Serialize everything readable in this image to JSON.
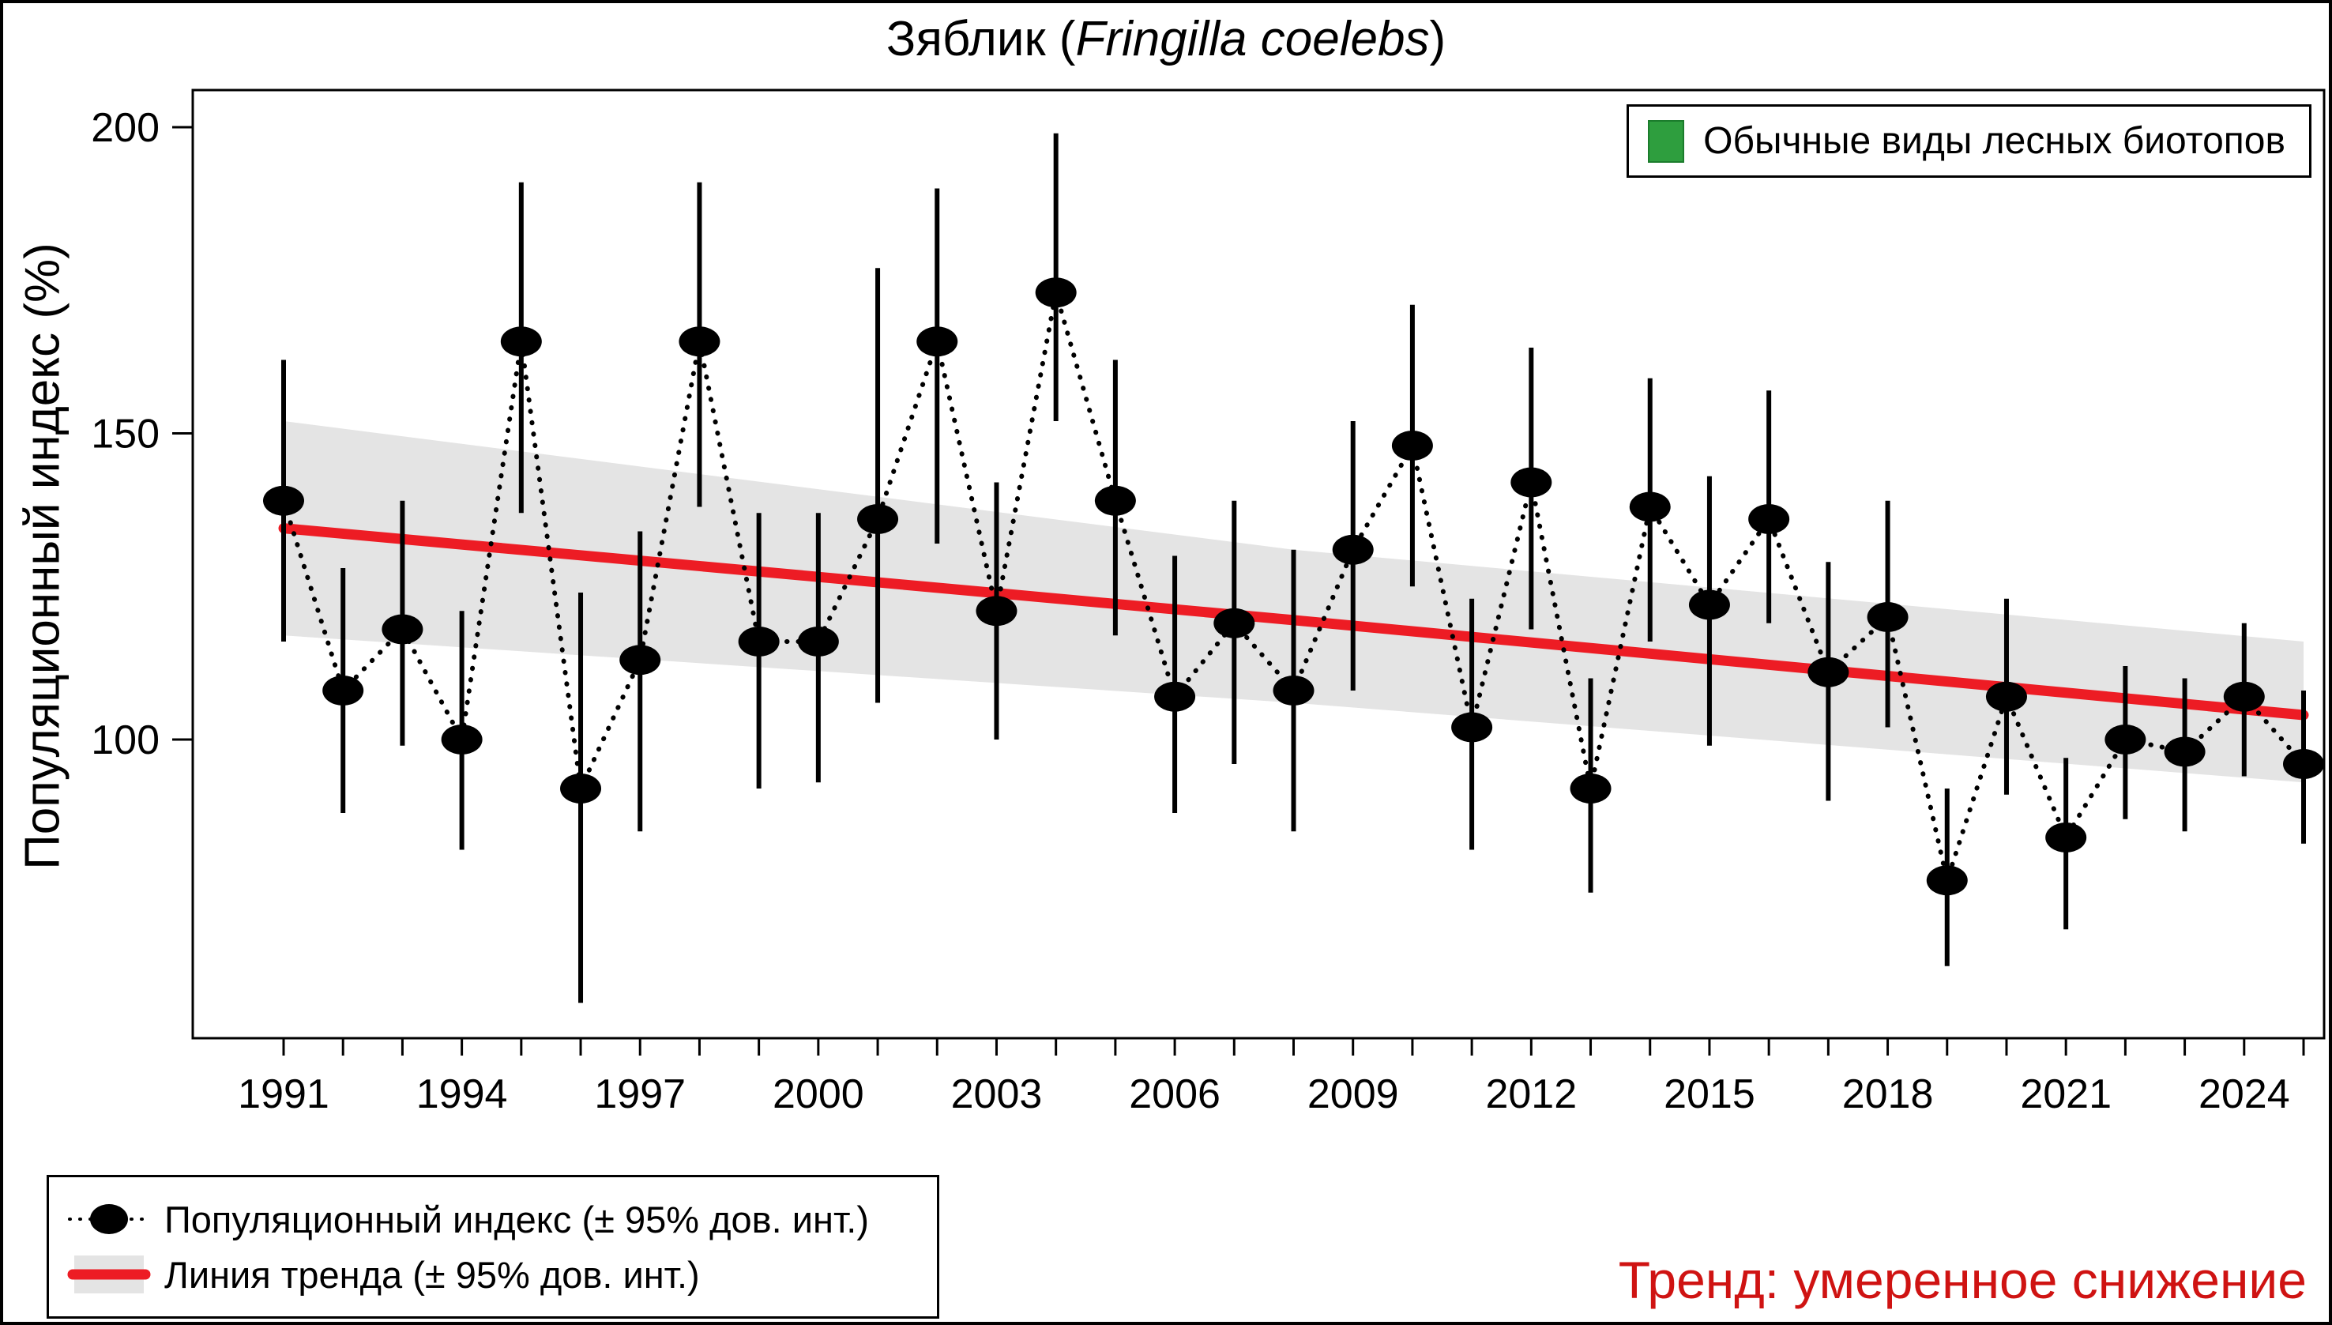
{
  "title": {
    "prefix": "Зяблик (",
    "species": "Fringilla coelebs",
    "suffix": ")"
  },
  "y_axis": {
    "label": "Популяционный индекс (%)",
    "tick_values": [
      100,
      150,
      200
    ]
  },
  "x_axis": {
    "labeled_years": [
      1991,
      1994,
      1997,
      2000,
      2003,
      2006,
      2009,
      2012,
      2015,
      2018,
      2021,
      2024
    ]
  },
  "legend_habitat": {
    "label": "Обычные виды лесных биотопов",
    "swatch_color": "#2e9e3e"
  },
  "legend_series": {
    "index_label": "Популяционный индекс (± 95% дов. инт.)",
    "trend_label": "Линия тренда (± 95% дов. инт.)"
  },
  "trend_note": {
    "text": "Тренд: умеренное снижение",
    "color": "#cf1312"
  },
  "chart_data": {
    "type": "scatter",
    "title": "Зяблик (Fringilla coelebs)",
    "xlabel": "",
    "ylabel": "Популяционный индекс (%)",
    "ylim": [
      51,
      206
    ],
    "x_range": [
      1991,
      2025
    ],
    "grid": false,
    "legend_position": "top-right",
    "x": [
      1991,
      1992,
      1993,
      1994,
      1995,
      1996,
      1997,
      1998,
      1999,
      2000,
      2001,
      2002,
      2003,
      2004,
      2005,
      2006,
      2007,
      2008,
      2009,
      2010,
      2011,
      2012,
      2013,
      2014,
      2015,
      2016,
      2017,
      2018,
      2019,
      2020,
      2021,
      2022,
      2023,
      2024,
      2025
    ],
    "series": [
      {
        "name": "Популяционный индекс",
        "values": [
          139,
          108,
          118,
          100,
          165,
          92,
          113,
          165,
          116,
          116,
          136,
          165,
          121,
          173,
          139,
          107,
          119,
          108,
          131,
          148,
          102,
          142,
          92,
          138,
          122,
          136,
          111,
          120,
          77,
          107,
          84,
          100,
          98,
          107,
          96
        ],
        "ci_low": [
          116,
          88,
          99,
          82,
          137,
          57,
          85,
          138,
          92,
          93,
          106,
          132,
          100,
          152,
          117,
          88,
          96,
          85,
          108,
          125,
          82,
          118,
          75,
          116,
          99,
          119,
          90,
          102,
          63,
          91,
          69,
          87,
          85,
          94,
          83
        ],
        "ci_high": [
          162,
          128,
          139,
          121,
          191,
          124,
          134,
          191,
          137,
          137,
          177,
          190,
          142,
          199,
          162,
          130,
          139,
          131,
          152,
          171,
          123,
          164,
          110,
          159,
          143,
          157,
          129,
          139,
          92,
          123,
          97,
          112,
          110,
          119,
          108
        ]
      }
    ],
    "trend": {
      "name": "Линия тренда",
      "x": [
        1991,
        2008,
        2025
      ],
      "line": [
        134.5,
        119.5,
        104
      ],
      "upper": [
        152,
        131,
        116
      ],
      "lower": [
        117,
        106,
        93
      ]
    },
    "colors": {
      "point": "#000000",
      "trend_line": "#ed1c24",
      "ci_band": "#e4e4e4"
    }
  }
}
